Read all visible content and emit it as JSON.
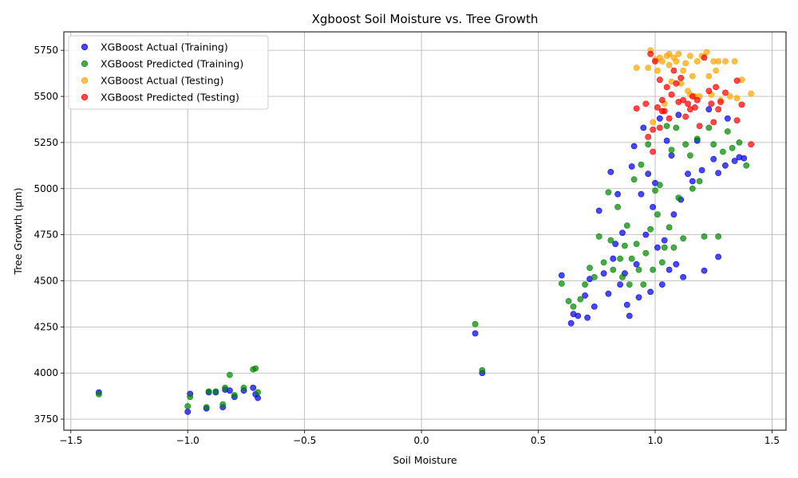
{
  "chart_data": {
    "type": "scatter",
    "title": "Xgboost Soil Moisture vs. Tree Growth",
    "xlabel": "Soil Moisture",
    "ylabel": "Tree Growth (µm)",
    "xlim": [
      -1.53,
      1.56
    ],
    "ylim": [
      3690,
      5850
    ],
    "xticks": [
      -1.5,
      -1.0,
      -0.5,
      0.0,
      0.5,
      1.0,
      1.5
    ],
    "xtick_labels": [
      "−1.5",
      "−1.0",
      "−0.5",
      "0.0",
      "0.5",
      "1.0",
      "1.5"
    ],
    "yticks": [
      3750,
      4000,
      4250,
      4500,
      4750,
      5000,
      5250,
      5500,
      5750
    ],
    "ytick_labels": [
      "3750",
      "4000",
      "4250",
      "4500",
      "4750",
      "5000",
      "5250",
      "5500",
      "5750"
    ],
    "grid": true,
    "legend_position": "top-left",
    "series": [
      {
        "name": "XGBoost Actual (Training)",
        "color": "#0000ee",
        "points": [
          [
            -1.38,
            3895
          ],
          [
            -1.0,
            3790
          ],
          [
            -0.99,
            3887
          ],
          [
            -0.92,
            3808
          ],
          [
            -0.91,
            3895
          ],
          [
            -0.88,
            3895
          ],
          [
            -0.85,
            3815
          ],
          [
            -0.84,
            3910
          ],
          [
            -0.82,
            3905
          ],
          [
            -0.8,
            3870
          ],
          [
            -0.76,
            3905
          ],
          [
            -0.72,
            3920
          ],
          [
            -0.71,
            3885
          ],
          [
            -0.7,
            3865
          ],
          [
            0.23,
            4215
          ],
          [
            0.26,
            4000
          ],
          [
            0.6,
            4530
          ],
          [
            0.64,
            4270
          ],
          [
            0.65,
            4320
          ],
          [
            0.67,
            4310
          ],
          [
            0.7,
            4420
          ],
          [
            0.71,
            4300
          ],
          [
            0.72,
            4510
          ],
          [
            0.74,
            4360
          ],
          [
            0.76,
            4880
          ],
          [
            0.78,
            4540
          ],
          [
            0.8,
            4430
          ],
          [
            0.81,
            5090
          ],
          [
            0.82,
            4620
          ],
          [
            0.83,
            4700
          ],
          [
            0.84,
            4970
          ],
          [
            0.85,
            4480
          ],
          [
            0.86,
            4760
          ],
          [
            0.87,
            4540
          ],
          [
            0.88,
            4370
          ],
          [
            0.89,
            4310
          ],
          [
            0.9,
            5120
          ],
          [
            0.91,
            5230
          ],
          [
            0.92,
            4590
          ],
          [
            0.93,
            4410
          ],
          [
            0.94,
            4970
          ],
          [
            0.95,
            5330
          ],
          [
            0.96,
            4750
          ],
          [
            0.97,
            5080
          ],
          [
            0.98,
            4440
          ],
          [
            0.99,
            4900
          ],
          [
            1.0,
            5030
          ],
          [
            1.01,
            4680
          ],
          [
            1.02,
            5380
          ],
          [
            1.03,
            4480
          ],
          [
            1.04,
            4720
          ],
          [
            1.05,
            5260
          ],
          [
            1.06,
            4560
          ],
          [
            1.07,
            5180
          ],
          [
            1.08,
            4860
          ],
          [
            1.09,
            4590
          ],
          [
            1.1,
            5400
          ],
          [
            1.11,
            4940
          ],
          [
            1.12,
            4520
          ],
          [
            1.14,
            5080
          ],
          [
            1.16,
            5040
          ],
          [
            1.18,
            5260
          ],
          [
            1.2,
            5100
          ],
          [
            1.21,
            4555
          ],
          [
            1.23,
            5430
          ],
          [
            1.25,
            5160
          ],
          [
            1.27,
            4630
          ],
          [
            1.27,
            5085
          ],
          [
            1.3,
            5125
          ],
          [
            1.31,
            5380
          ],
          [
            1.34,
            5150
          ],
          [
            1.36,
            5170
          ],
          [
            1.38,
            5165
          ]
        ]
      },
      {
        "name": "XGBoost Predicted (Training)",
        "color": "#008800",
        "points": [
          [
            -1.38,
            3885
          ],
          [
            -1.0,
            3820
          ],
          [
            -0.99,
            3870
          ],
          [
            -0.92,
            3815
          ],
          [
            -0.91,
            3900
          ],
          [
            -0.88,
            3900
          ],
          [
            -0.85,
            3830
          ],
          [
            -0.84,
            3920
          ],
          [
            -0.82,
            3990
          ],
          [
            -0.8,
            3880
          ],
          [
            -0.76,
            3920
          ],
          [
            -0.72,
            4020
          ],
          [
            -0.71,
            4025
          ],
          [
            -0.7,
            3895
          ],
          [
            0.23,
            4265
          ],
          [
            0.26,
            4015
          ],
          [
            0.6,
            4485
          ],
          [
            0.63,
            4390
          ],
          [
            0.65,
            4360
          ],
          [
            0.68,
            4400
          ],
          [
            0.7,
            4480
          ],
          [
            0.72,
            4570
          ],
          [
            0.74,
            4520
          ],
          [
            0.76,
            4740
          ],
          [
            0.78,
            4600
          ],
          [
            0.8,
            4980
          ],
          [
            0.81,
            4720
          ],
          [
            0.82,
            4560
          ],
          [
            0.84,
            4900
          ],
          [
            0.85,
            4620
          ],
          [
            0.86,
            4520
          ],
          [
            0.87,
            4690
          ],
          [
            0.88,
            4800
          ],
          [
            0.89,
            4480
          ],
          [
            0.9,
            4620
          ],
          [
            0.91,
            5050
          ],
          [
            0.92,
            4700
          ],
          [
            0.93,
            4560
          ],
          [
            0.94,
            5130
          ],
          [
            0.95,
            4480
          ],
          [
            0.96,
            4650
          ],
          [
            0.97,
            5240
          ],
          [
            0.98,
            4780
          ],
          [
            0.99,
            4560
          ],
          [
            1.0,
            4990
          ],
          [
            1.01,
            4860
          ],
          [
            1.02,
            5020
          ],
          [
            1.03,
            4600
          ],
          [
            1.04,
            4680
          ],
          [
            1.05,
            5340
          ],
          [
            1.06,
            4790
          ],
          [
            1.07,
            5210
          ],
          [
            1.08,
            4680
          ],
          [
            1.09,
            5330
          ],
          [
            1.1,
            4950
          ],
          [
            1.12,
            4730
          ],
          [
            1.13,
            5240
          ],
          [
            1.15,
            5180
          ],
          [
            1.16,
            5000
          ],
          [
            1.18,
            5270
          ],
          [
            1.19,
            5040
          ],
          [
            1.21,
            4740
          ],
          [
            1.23,
            5330
          ],
          [
            1.25,
            5240
          ],
          [
            1.27,
            4740
          ],
          [
            1.29,
            5200
          ],
          [
            1.31,
            5310
          ],
          [
            1.33,
            5220
          ],
          [
            1.36,
            5250
          ],
          [
            1.39,
            5125
          ]
        ]
      },
      {
        "name": "XGBoost Actual (Testing)",
        "color": "#ffa500",
        "points": [
          [
            0.92,
            5655
          ],
          [
            0.97,
            5655
          ],
          [
            0.99,
            5360
          ],
          [
            1.0,
            5700
          ],
          [
            1.01,
            5640
          ],
          [
            1.02,
            5710
          ],
          [
            1.03,
            5690
          ],
          [
            1.04,
            5460
          ],
          [
            1.05,
            5720
          ],
          [
            1.06,
            5670
          ],
          [
            1.07,
            5580
          ],
          [
            1.08,
            5710
          ],
          [
            1.09,
            5690
          ],
          [
            1.1,
            5730
          ],
          [
            1.11,
            5570
          ],
          [
            1.12,
            5640
          ],
          [
            1.13,
            5680
          ],
          [
            1.14,
            5530
          ],
          [
            1.15,
            5510
          ],
          [
            1.16,
            5610
          ],
          [
            1.17,
            5500
          ],
          [
            1.18,
            5690
          ],
          [
            1.19,
            5500
          ],
          [
            1.2,
            5720
          ],
          [
            1.22,
            5740
          ],
          [
            1.23,
            5610
          ],
          [
            1.24,
            5510
          ],
          [
            1.25,
            5690
          ],
          [
            1.26,
            5640
          ],
          [
            1.27,
            5690
          ],
          [
            1.28,
            5480
          ],
          [
            1.3,
            5690
          ],
          [
            1.32,
            5500
          ],
          [
            1.34,
            5690
          ],
          [
            1.35,
            5490
          ],
          [
            1.37,
            5590
          ],
          [
            1.41,
            5515
          ],
          [
            0.98,
            5750
          ],
          [
            1.06,
            5730
          ],
          [
            1.15,
            5720
          ]
        ]
      },
      {
        "name": "XGBoost Predicted (Testing)",
        "color": "#ff0000",
        "points": [
          [
            0.92,
            5435
          ],
          [
            0.96,
            5460
          ],
          [
            0.97,
            5280
          ],
          [
            0.98,
            5730
          ],
          [
            0.99,
            5200
          ],
          [
            1.0,
            5690
          ],
          [
            1.01,
            5440
          ],
          [
            1.02,
            5590
          ],
          [
            1.03,
            5480
          ],
          [
            1.04,
            5420
          ],
          [
            1.05,
            5550
          ],
          [
            1.06,
            5380
          ],
          [
            1.07,
            5510
          ],
          [
            1.08,
            5640
          ],
          [
            1.09,
            5570
          ],
          [
            1.1,
            5470
          ],
          [
            1.11,
            5600
          ],
          [
            1.12,
            5480
          ],
          [
            1.13,
            5390
          ],
          [
            1.14,
            5460
          ],
          [
            1.15,
            5430
          ],
          [
            1.16,
            5500
          ],
          [
            1.17,
            5440
          ],
          [
            1.18,
            5480
          ],
          [
            1.19,
            5340
          ],
          [
            1.21,
            5710
          ],
          [
            1.23,
            5530
          ],
          [
            1.24,
            5460
          ],
          [
            1.25,
            5360
          ],
          [
            1.26,
            5550
          ],
          [
            1.27,
            5430
          ],
          [
            1.28,
            5470
          ],
          [
            1.3,
            5520
          ],
          [
            1.35,
            5585
          ],
          [
            1.35,
            5370
          ],
          [
            1.37,
            5455
          ],
          [
            1.41,
            5240
          ],
          [
            1.03,
            5420
          ],
          [
            0.99,
            5320
          ],
          [
            1.02,
            5330
          ]
        ]
      }
    ]
  }
}
